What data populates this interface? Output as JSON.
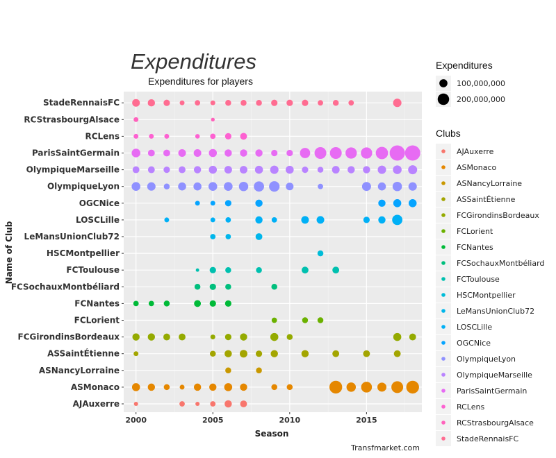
{
  "chart_data": {
    "type": "scatter",
    "title": "Expenditures",
    "subtitle": "Expenditures for players",
    "xlabel": "Season",
    "ylabel": "Name of Club",
    "caption": "Transfmarket.com",
    "xlim": [
      1999.2,
      2018.6
    ],
    "x_ticks": [
      2000,
      2005,
      2010,
      2015
    ],
    "clubs": [
      "AJAuxerre",
      "ASMonaco",
      "ASNancyLorraine",
      "ASSaintÉtienne",
      "FCGirondinsBordeaux",
      "FCLorient",
      "FCNantes",
      "FCSochauxMontbéliard",
      "FCToulouse",
      "HSCMontpellier",
      "LeMansUnionClub72",
      "LOSCLille",
      "OGCNice",
      "OlympiqueLyon",
      "OlympiqueMarseille",
      "ParisSaintGermain",
      "RCLens",
      "RCStrasbourgAlsace",
      "StadeRennaisFC"
    ],
    "colors": {
      "AJAuxerre": "#F8766D",
      "ASMonaco": "#E58700",
      "ASNancyLorraine": "#C99800",
      "ASSaintÉtienne": "#A3A500",
      "FCGirondinsBordeaux": "#94AA00",
      "FCLorient": "#6BB100",
      "FCNantes": "#00BA38",
      "FCSochauxMontbéliard": "#00BF7D",
      "FCToulouse": "#00C0AF",
      "HSCMontpellier": "#00BCD8",
      "LeMansUnionClub72": "#00B6EB",
      "LOSCLille": "#00B0F6",
      "OGCNice": "#06A4FF",
      "OlympiqueLyon": "#8F91FF",
      "OlympiqueMarseille": "#B983FF",
      "ParisSaintGermain": "#E76BF3",
      "RCLens": "#FD61D1",
      "RCStrasbourgAlsace": "#FF62BC",
      "StadeRennaisFC": "#FF6C91"
    },
    "size_legend": {
      "title": "Expenditures",
      "labels": [
        "100,000,000",
        "200,000,000"
      ],
      "values": [
        100000000,
        200000000
      ]
    },
    "color_legend_title": "Clubs",
    "points": {
      "StadeRennaisFC": [
        [
          2000,
          50000000
        ],
        [
          2001,
          45000000
        ],
        [
          2002,
          35000000
        ],
        [
          2003,
          20000000
        ],
        [
          2004,
          25000000
        ],
        [
          2005,
          20000000
        ],
        [
          2006,
          30000000
        ],
        [
          2007,
          30000000
        ],
        [
          2008,
          30000000
        ],
        [
          2009,
          35000000
        ],
        [
          2010,
          35000000
        ],
        [
          2011,
          35000000
        ],
        [
          2012,
          25000000
        ],
        [
          2013,
          30000000
        ],
        [
          2014,
          25000000
        ],
        [
          2017,
          60000000
        ]
      ],
      "RCStrasbourgAlsace": [
        [
          2000,
          20000000
        ],
        [
          2005,
          12000000
        ]
      ],
      "RCLens": [
        [
          2000,
          20000000
        ],
        [
          2001,
          20000000
        ],
        [
          2002,
          20000000
        ],
        [
          2004,
          18000000
        ],
        [
          2005,
          25000000
        ],
        [
          2006,
          35000000
        ],
        [
          2007,
          40000000
        ]
      ],
      "ParisSaintGermain": [
        [
          2000,
          65000000
        ],
        [
          2001,
          40000000
        ],
        [
          2002,
          40000000
        ],
        [
          2003,
          50000000
        ],
        [
          2004,
          50000000
        ],
        [
          2005,
          55000000
        ],
        [
          2006,
          45000000
        ],
        [
          2007,
          45000000
        ],
        [
          2008,
          45000000
        ],
        [
          2009,
          35000000
        ],
        [
          2010,
          35000000
        ],
        [
          2011,
          90000000
        ],
        [
          2012,
          120000000
        ],
        [
          2013,
          120000000
        ],
        [
          2014,
          110000000
        ],
        [
          2015,
          110000000
        ],
        [
          2016,
          130000000
        ],
        [
          2017,
          200000000
        ],
        [
          2018,
          200000000
        ]
      ],
      "OlympiqueMarseille": [
        [
          2000,
          40000000
        ],
        [
          2001,
          40000000
        ],
        [
          2002,
          35000000
        ],
        [
          2003,
          40000000
        ],
        [
          2004,
          45000000
        ],
        [
          2005,
          55000000
        ],
        [
          2006,
          50000000
        ],
        [
          2007,
          50000000
        ],
        [
          2008,
          55000000
        ],
        [
          2009,
          60000000
        ],
        [
          2010,
          55000000
        ],
        [
          2011,
          35000000
        ],
        [
          2012,
          30000000
        ],
        [
          2013,
          50000000
        ],
        [
          2014,
          45000000
        ],
        [
          2015,
          45000000
        ],
        [
          2016,
          60000000
        ],
        [
          2017,
          65000000
        ],
        [
          2018,
          70000000
        ]
      ],
      "OlympiqueLyon": [
        [
          2000,
          65000000
        ],
        [
          2001,
          60000000
        ],
        [
          2002,
          30000000
        ],
        [
          2003,
          55000000
        ],
        [
          2004,
          55000000
        ],
        [
          2005,
          65000000
        ],
        [
          2006,
          65000000
        ],
        [
          2007,
          75000000
        ],
        [
          2008,
          90000000
        ],
        [
          2009,
          95000000
        ],
        [
          2010,
          50000000
        ],
        [
          2012,
          25000000
        ],
        [
          2015,
          70000000
        ],
        [
          2016,
          55000000
        ],
        [
          2017,
          75000000
        ],
        [
          2018,
          60000000
        ]
      ],
      "OGCNice": [
        [
          2004,
          20000000
        ],
        [
          2005,
          20000000
        ],
        [
          2006,
          35000000
        ],
        [
          2008,
          45000000
        ],
        [
          2016,
          45000000
        ],
        [
          2017,
          55000000
        ],
        [
          2018,
          55000000
        ]
      ],
      "LOSCLille": [
        [
          2002,
          20000000
        ],
        [
          2005,
          20000000
        ],
        [
          2006,
          25000000
        ],
        [
          2008,
          45000000
        ],
        [
          2009,
          25000000
        ],
        [
          2011,
          50000000
        ],
        [
          2012,
          50000000
        ],
        [
          2015,
          35000000
        ],
        [
          2016,
          45000000
        ],
        [
          2017,
          90000000
        ]
      ],
      "LeMansUnionClub72": [
        [
          2005,
          25000000
        ],
        [
          2006,
          25000000
        ],
        [
          2008,
          40000000
        ]
      ],
      "HSCMontpellier": [
        [
          2012,
          30000000
        ]
      ],
      "FCToulouse": [
        [
          2004,
          10000000
        ],
        [
          2005,
          35000000
        ],
        [
          2006,
          30000000
        ],
        [
          2008,
          30000000
        ],
        [
          2011,
          40000000
        ],
        [
          2013,
          40000000
        ]
      ],
      "FCSochauxMontbéliard": [
        [
          2004,
          30000000
        ],
        [
          2005,
          35000000
        ],
        [
          2006,
          30000000
        ],
        [
          2009,
          30000000
        ]
      ],
      "FCNantes": [
        [
          2000,
          25000000
        ],
        [
          2001,
          25000000
        ],
        [
          2002,
          30000000
        ],
        [
          2004,
          40000000
        ],
        [
          2005,
          35000000
        ],
        [
          2006,
          35000000
        ]
      ],
      "FCLorient": [
        [
          2009,
          25000000
        ],
        [
          2011,
          30000000
        ],
        [
          2012,
          30000000
        ]
      ],
      "FCGirondinsBordeaux": [
        [
          2000,
          45000000
        ],
        [
          2001,
          45000000
        ],
        [
          2002,
          40000000
        ],
        [
          2003,
          40000000
        ],
        [
          2005,
          20000000
        ],
        [
          2006,
          35000000
        ],
        [
          2007,
          45000000
        ],
        [
          2009,
          55000000
        ],
        [
          2010,
          30000000
        ],
        [
          2017,
          55000000
        ],
        [
          2018,
          40000000
        ]
      ],
      "ASSaintÉtienne": [
        [
          2000,
          20000000
        ],
        [
          2005,
          30000000
        ],
        [
          2006,
          45000000
        ],
        [
          2007,
          50000000
        ],
        [
          2008,
          35000000
        ],
        [
          2009,
          45000000
        ],
        [
          2011,
          45000000
        ],
        [
          2013,
          40000000
        ],
        [
          2015,
          40000000
        ],
        [
          2017,
          40000000
        ]
      ],
      "ASNancyLorraine": [
        [
          2006,
          30000000
        ],
        [
          2008,
          30000000
        ]
      ],
      "ASMonaco": [
        [
          2000,
          55000000
        ],
        [
          2001,
          45000000
        ],
        [
          2002,
          30000000
        ],
        [
          2003,
          20000000
        ],
        [
          2004,
          45000000
        ],
        [
          2005,
          45000000
        ],
        [
          2006,
          55000000
        ],
        [
          2007,
          45000000
        ],
        [
          2009,
          30000000
        ],
        [
          2010,
          30000000
        ],
        [
          2013,
          140000000
        ],
        [
          2014,
          75000000
        ],
        [
          2015,
          100000000
        ],
        [
          2016,
          70000000
        ],
        [
          2017,
          120000000
        ],
        [
          2018,
          140000000
        ]
      ],
      "AJAuxerre": [
        [
          2000,
          15000000
        ],
        [
          2003,
          25000000
        ],
        [
          2004,
          15000000
        ],
        [
          2005,
          25000000
        ],
        [
          2006,
          45000000
        ],
        [
          2007,
          40000000
        ]
      ]
    }
  }
}
